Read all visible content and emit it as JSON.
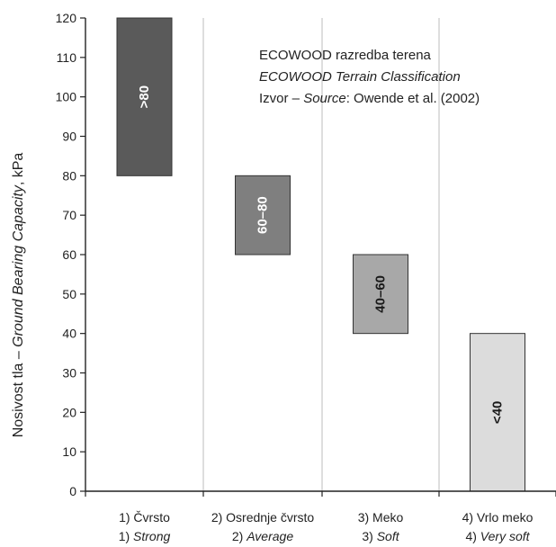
{
  "chart_data": {
    "type": "bar",
    "orientation": "floating-range",
    "ylabel_plain": "Nosivost tla – ",
    "ylabel_italic": "Ground Bearing Capacity",
    "ylabel_unit": ", kPa",
    "ylim": [
      0,
      120
    ],
    "yticks": [
      "0",
      "10",
      "20",
      "30",
      "40",
      "50",
      "60",
      "70",
      "80",
      "90",
      "100",
      "110",
      "120"
    ],
    "grid": "vertical category separators",
    "bar_colors": [
      "#5a5a5a",
      "#7f7f7f",
      "#a8a8a8",
      "#dcdcdc"
    ],
    "bars": [
      {
        "cat_local": "1) Čvrsto",
        "cat_en": "Strong",
        "low": 80,
        "high": 120,
        "label": ">80"
      },
      {
        "cat_local": "2) Osrednje čvrsto",
        "cat_en": "Average",
        "low": 60,
        "high": 80,
        "label": "60–80"
      },
      {
        "cat_local": "3) Meko",
        "cat_en": "Soft",
        "low": 40,
        "high": 60,
        "label": "40–60"
      },
      {
        "cat_local": "4) Vrlo meko",
        "cat_en": "Very soft",
        "low": 0,
        "high": 40,
        "label": "<40"
      }
    ],
    "annotation": {
      "line1": "ECOWOOD razredba terena",
      "line2": "ECOWOOD Terrain Classification",
      "line3_plain": "Izvor – ",
      "line3_italic": "Source",
      "line3_rest": ": Owende et al. (2002)"
    }
  }
}
